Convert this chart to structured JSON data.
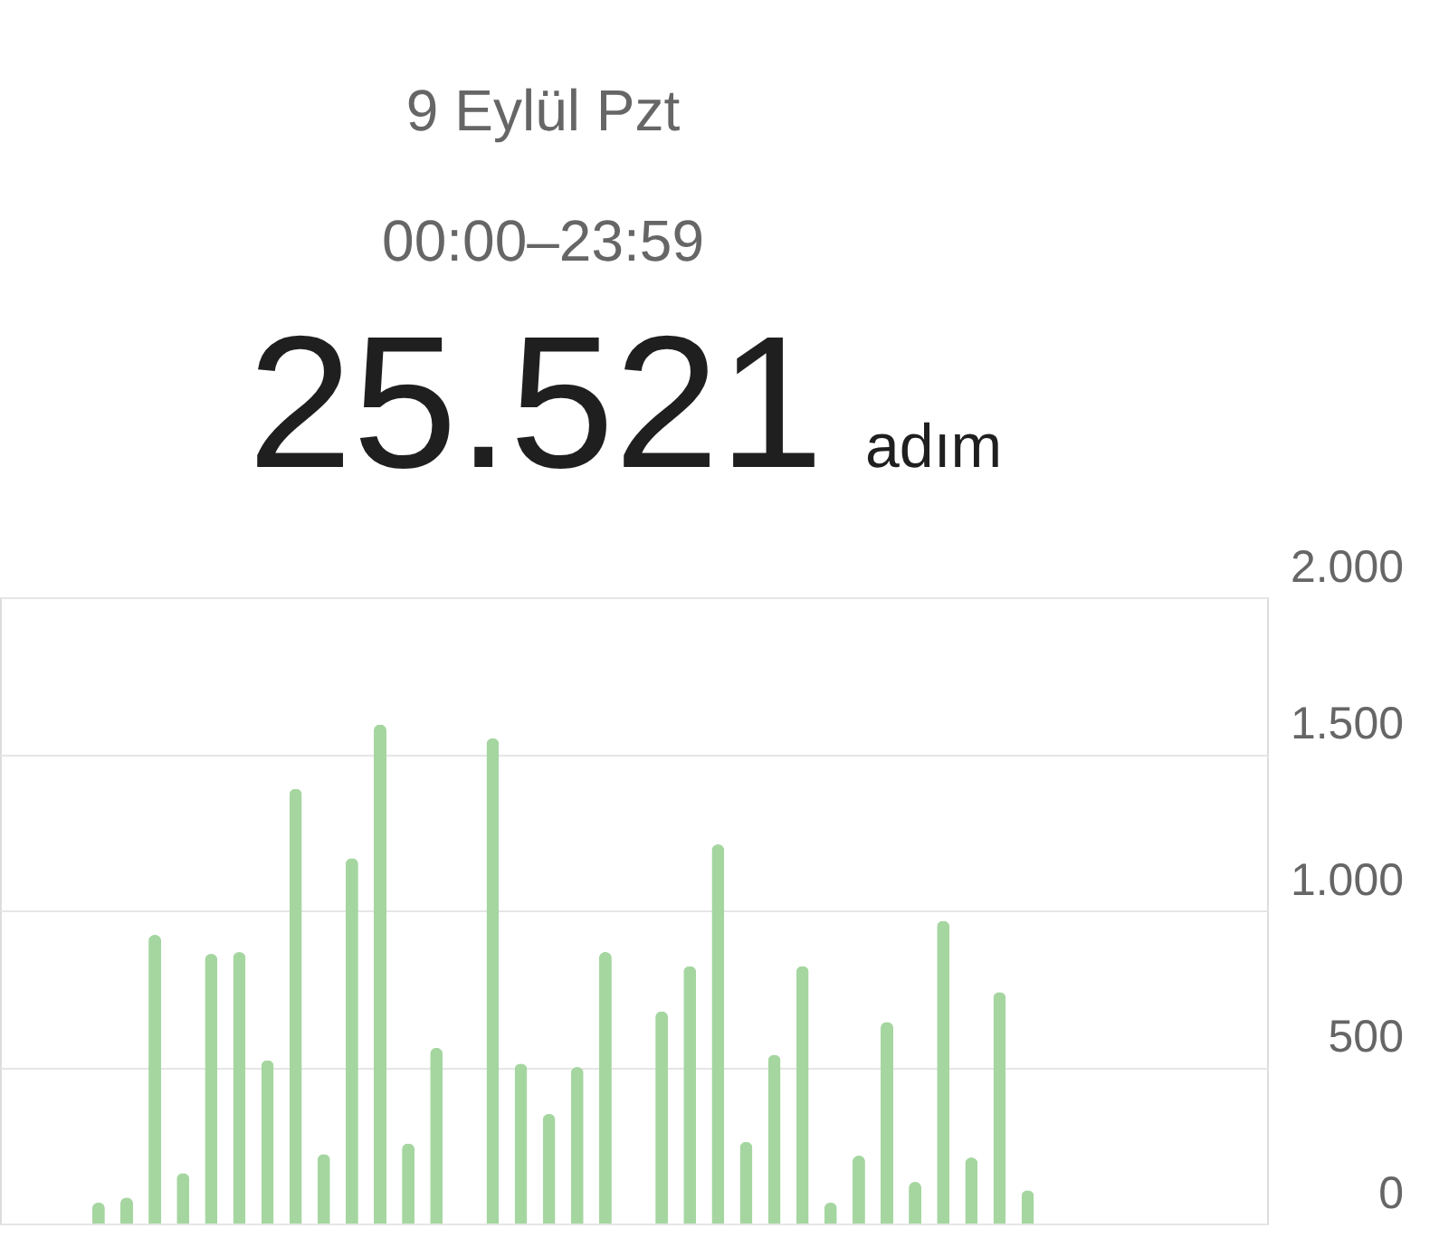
{
  "chart_data": {
    "type": "bar",
    "title": "9 Eylül Pzt",
    "subtitle": "00:00–23:59",
    "annotations": [
      "25.521",
      "adım"
    ],
    "categories": [
      null,
      null,
      null,
      null,
      null,
      null,
      null,
      null,
      null,
      null,
      null,
      null,
      null,
      null,
      null,
      null,
      null,
      null,
      null,
      null,
      null,
      null,
      null,
      null,
      null,
      null,
      null,
      null,
      null,
      null,
      null,
      null,
      null,
      null,
      null,
      null,
      null,
      null,
      null,
      null,
      null,
      null,
      null,
      null,
      null
    ],
    "series": [
      {
        "color": "#a5d6a0",
        "values": [
          0,
          0,
          0,
          67,
          83,
          922,
          161,
          861,
          867,
          522,
          1389,
          222,
          1167,
          1594,
          256,
          561,
          0,
          1550,
          511,
          350,
          500,
          867,
          0,
          678,
          822,
          1211,
          261,
          539,
          822,
          67,
          217,
          644,
          133,
          967,
          211,
          739,
          106,
          0,
          0,
          0,
          0,
          0,
          0,
          0,
          0
        ]
      }
    ],
    "ylim": [
      0,
      2000
    ],
    "yticks": [
      0,
      {
        "value": 500,
        "label": "500"
      },
      {
        "value": 1000,
        "label": "1.000"
      },
      {
        "value": 1500,
        "label": "1.500"
      },
      {
        "value": 2000,
        "label": "2.000"
      }
    ],
    "grid": "y",
    "tick_labels": "y"
  }
}
